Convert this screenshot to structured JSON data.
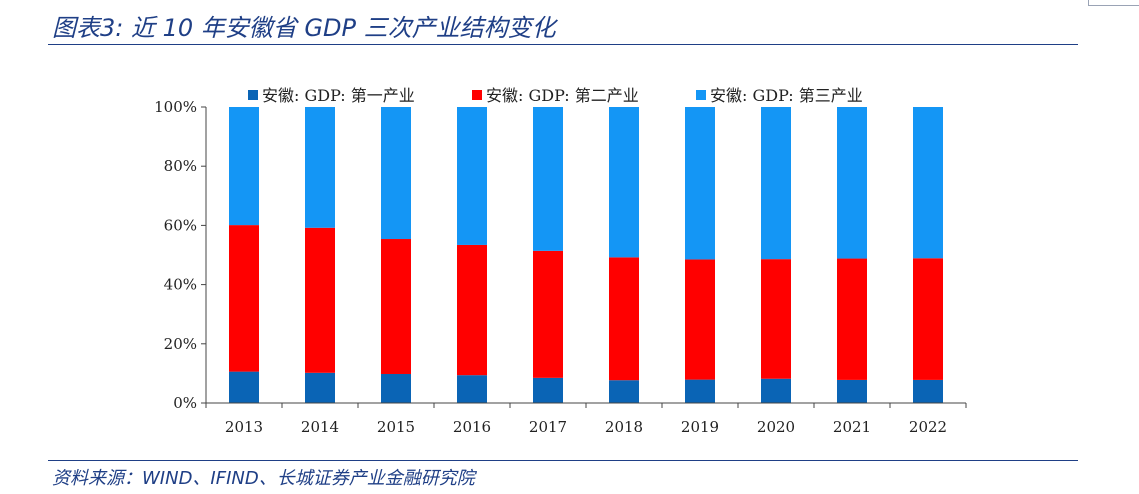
{
  "title": "图表3:  近 10 年安徽省 GDP 三次产业结构变化",
  "source": "资料来源：WIND、IFIND、长城证券产业金融研究院",
  "colors": {
    "primary": "#0a64b5",
    "secondary": "#ff0000",
    "tertiary": "#1496f5",
    "accent": "#1f3f86"
  },
  "chart_data": {
    "type": "bar",
    "stacked": true,
    "categories": [
      "2013",
      "2014",
      "2015",
      "2016",
      "2017",
      "2018",
      "2019",
      "2020",
      "2021",
      "2022"
    ],
    "series": [
      {
        "name": "安徽: GDP: 第一产业",
        "values": [
          10.6,
          10.2,
          9.8,
          9.4,
          8.5,
          7.7,
          7.9,
          8.2,
          7.8,
          7.8
        ]
      },
      {
        "name": "安徽: GDP: 第二产业",
        "values": [
          49.5,
          49.0,
          45.6,
          44.0,
          42.9,
          41.5,
          40.6,
          40.4,
          41.0,
          41.1
        ]
      },
      {
        "name": "安徽: GDP: 第三产业",
        "values": [
          39.9,
          40.8,
          44.6,
          46.6,
          48.6,
          50.8,
          51.5,
          51.4,
          51.2,
          51.1
        ]
      }
    ],
    "y_ticks": [
      "0%",
      "20%",
      "40%",
      "60%",
      "80%",
      "100%"
    ],
    "ylim": [
      0,
      100
    ],
    "legend_position": "top"
  }
}
